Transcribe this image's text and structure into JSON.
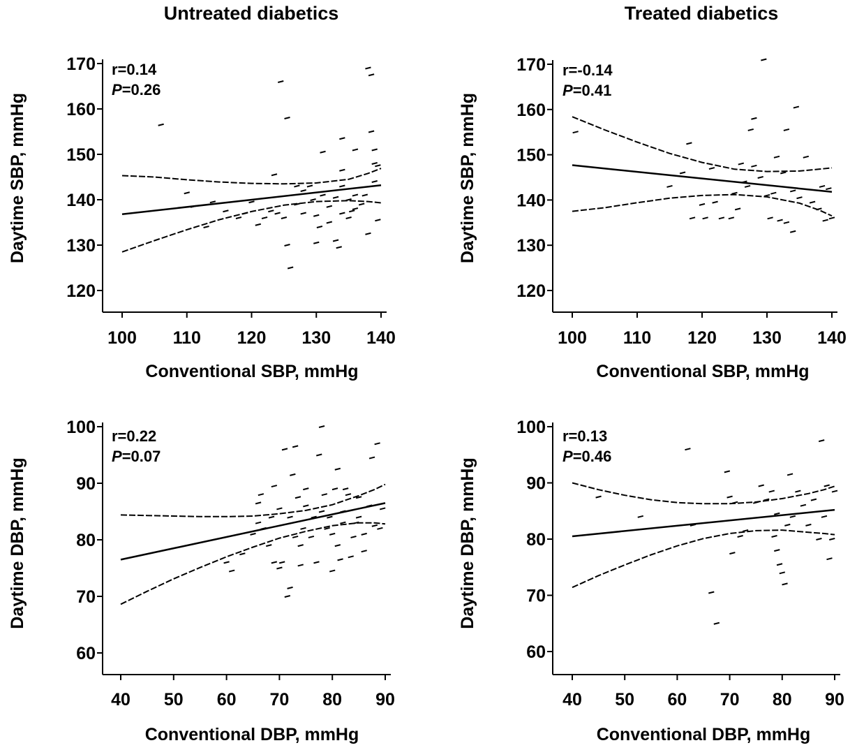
{
  "columns": {
    "left_title": "Untreated diabetics",
    "right_title": "Treated diabetics"
  },
  "chart_data": [
    {
      "type": "scatter",
      "panel": "untreated-sbp",
      "xlabel": "Conventional SBP, mmHg",
      "ylabel": "Daytime SBP, mmHg",
      "xlim": [
        100,
        140
      ],
      "ylim": [
        120,
        170
      ],
      "xticks": [
        100,
        110,
        120,
        130,
        140
      ],
      "yticks": [
        120,
        130,
        140,
        150,
        160,
        170
      ],
      "annotation": {
        "r": "r=0.14",
        "p_label": "P",
        "p_value": "=0.26"
      },
      "points": [
        [
          106,
          156.5
        ],
        [
          110,
          141.5
        ],
        [
          111,
          138.5
        ],
        [
          113,
          134
        ],
        [
          114,
          139.5
        ],
        [
          116,
          137.5
        ],
        [
          118,
          136
        ],
        [
          119,
          137
        ],
        [
          120,
          139.5
        ],
        [
          121,
          134.5
        ],
        [
          122,
          136
        ],
        [
          123,
          137.5
        ],
        [
          123.5,
          145.5
        ],
        [
          124,
          137
        ],
        [
          124.5,
          166
        ],
        [
          125,
          136
        ],
        [
          125.5,
          158
        ],
        [
          125.5,
          130
        ],
        [
          126,
          125
        ],
        [
          127,
          139
        ],
        [
          127,
          143
        ],
        [
          128,
          142
        ],
        [
          128,
          137
        ],
        [
          129,
          143
        ],
        [
          129.5,
          140
        ],
        [
          130,
          130.5
        ],
        [
          130,
          136.5
        ],
        [
          130.5,
          134
        ],
        [
          131,
          141
        ],
        [
          131,
          150.5
        ],
        [
          132,
          135
        ],
        [
          132,
          138.5
        ],
        [
          133,
          131
        ],
        [
          133,
          140.5
        ],
        [
          133.5,
          129.5
        ],
        [
          134,
          137
        ],
        [
          134,
          143
        ],
        [
          134,
          146.5
        ],
        [
          134,
          153.5
        ],
        [
          135,
          136
        ],
        [
          135,
          140
        ],
        [
          135.5,
          137.5
        ],
        [
          136,
          138
        ],
        [
          136,
          141
        ],
        [
          136,
          151
        ],
        [
          137,
          139
        ],
        [
          137.5,
          141
        ],
        [
          138,
          132.5
        ],
        [
          138,
          169
        ],
        [
          138.5,
          155
        ],
        [
          138.5,
          167.5
        ],
        [
          139,
          148
        ],
        [
          139,
          144
        ],
        [
          139,
          151
        ],
        [
          139.5,
          135.5
        ],
        [
          139.5,
          147.5
        ]
      ],
      "fit": {
        "x": [
          100,
          140
        ],
        "y": [
          136.8,
          143.2
        ]
      },
      "ci_upper": {
        "x": [
          100,
          105,
          110,
          115,
          120,
          125,
          130,
          135,
          138,
          140
        ],
        "y": [
          145.3,
          145,
          144.4,
          143.9,
          143.6,
          143.5,
          143.7,
          144.5,
          145.8,
          146.9
        ]
      },
      "ci_lower": {
        "x": [
          100,
          105,
          110,
          115,
          120,
          125,
          130,
          135,
          138,
          140
        ],
        "y": [
          128.5,
          131,
          133.4,
          135.6,
          137.4,
          138.8,
          139.6,
          139.8,
          139.6,
          139.3
        ]
      }
    },
    {
      "type": "scatter",
      "panel": "treated-sbp",
      "xlabel": "Conventional SBP, mmHg",
      "ylabel": "Daytime SBP, mmHg",
      "xlim": [
        100,
        140
      ],
      "ylim": [
        120,
        170
      ],
      "xticks": [
        100,
        110,
        120,
        130,
        140
      ],
      "yticks": [
        120,
        130,
        140,
        150,
        160,
        170
      ],
      "annotation": {
        "r": "r=-0.14",
        "p_label": "P",
        "p_value": "=0.41"
      },
      "points": [
        [
          100.5,
          155
        ],
        [
          115,
          143
        ],
        [
          117,
          146
        ],
        [
          118,
          152.5
        ],
        [
          118.5,
          136
        ],
        [
          120,
          139
        ],
        [
          120.5,
          136
        ],
        [
          121.5,
          147
        ],
        [
          122,
          139.5
        ],
        [
          123,
          136
        ],
        [
          124.5,
          136
        ],
        [
          125,
          141.5
        ],
        [
          125.5,
          138
        ],
        [
          126,
          148
        ],
        [
          126.5,
          144
        ],
        [
          127,
          143
        ],
        [
          127.5,
          155.5
        ],
        [
          128,
          158
        ],
        [
          128,
          147.5
        ],
        [
          129,
          145
        ],
        [
          129.5,
          171
        ],
        [
          130,
          141
        ],
        [
          130.5,
          136
        ],
        [
          131,
          141.5
        ],
        [
          131.5,
          149.5
        ],
        [
          132,
          135.5
        ],
        [
          132.5,
          146
        ],
        [
          133,
          155.5
        ],
        [
          133,
          135
        ],
        [
          134,
          142
        ],
        [
          134,
          133
        ],
        [
          134.5,
          160.5
        ],
        [
          135,
          140.5
        ],
        [
          136,
          149.5
        ],
        [
          137,
          139.5
        ],
        [
          138,
          138
        ],
        [
          138.5,
          143
        ],
        [
          139,
          135.5
        ],
        [
          139.5,
          142.5
        ],
        [
          140,
          136
        ]
      ],
      "fit": {
        "x": [
          100,
          140
        ],
        "y": [
          147.7,
          141.8
        ]
      },
      "ci_upper": {
        "x": [
          100,
          105,
          110,
          115,
          120,
          125,
          130,
          135,
          138,
          140
        ],
        "y": [
          158.4,
          155.5,
          152.8,
          150.3,
          148.3,
          146.8,
          146.3,
          146.4,
          146.8,
          147.1
        ]
      },
      "ci_lower": {
        "x": [
          100,
          105,
          110,
          115,
          120,
          125,
          130,
          135,
          138,
          140
        ],
        "y": [
          137.5,
          138.3,
          139.4,
          140.4,
          141,
          141.2,
          140.7,
          139.3,
          137.8,
          136.5
        ]
      }
    },
    {
      "type": "scatter",
      "panel": "untreated-dbp",
      "xlabel": "Conventional DBP, mmHg",
      "ylabel": "Daytime DBP, mmHg",
      "xlim": [
        40,
        90
      ],
      "ylim": [
        60,
        100
      ],
      "xticks": [
        40,
        50,
        60,
        70,
        80,
        90
      ],
      "yticks": [
        60,
        70,
        80,
        90,
        100
      ],
      "annotation": {
        "r": "r=0.22",
        "p_label": "P",
        "p_value": "=0.07"
      },
      "points": [
        [
          60,
          76
        ],
        [
          61,
          74.5
        ],
        [
          63,
          77.5
        ],
        [
          65,
          81
        ],
        [
          66,
          83
        ],
        [
          66,
          86.5
        ],
        [
          66.5,
          88
        ],
        [
          67,
          82
        ],
        [
          68,
          79
        ],
        [
          68.5,
          84
        ],
        [
          69,
          76
        ],
        [
          69,
          89.5
        ],
        [
          70,
          75
        ],
        [
          70,
          85.5
        ],
        [
          70.5,
          76
        ],
        [
          71,
          96
        ],
        [
          71.5,
          70
        ],
        [
          72,
          71.5
        ],
        [
          72,
          84
        ],
        [
          72.5,
          91.5
        ],
        [
          73,
          80.5
        ],
        [
          73,
          96.5
        ],
        [
          73.5,
          87.5
        ],
        [
          74,
          75.5
        ],
        [
          74,
          79
        ],
        [
          74.5,
          82
        ],
        [
          75,
          86
        ],
        [
          75,
          89
        ],
        [
          76,
          80.5
        ],
        [
          76.5,
          84
        ],
        [
          77,
          76
        ],
        [
          77.5,
          95
        ],
        [
          78,
          100
        ],
        [
          78,
          85
        ],
        [
          78.5,
          88
        ],
        [
          79,
          82
        ],
        [
          79.5,
          84
        ],
        [
          80,
          74.5
        ],
        [
          80,
          81
        ],
        [
          80.5,
          89
        ],
        [
          81,
          79
        ],
        [
          81,
          92.5
        ],
        [
          81.5,
          76.5
        ],
        [
          82,
          85
        ],
        [
          82,
          83
        ],
        [
          82.5,
          89
        ],
        [
          83,
          88
        ],
        [
          83.5,
          77
        ],
        [
          84,
          80.5
        ],
        [
          84.5,
          83
        ],
        [
          85,
          84
        ],
        [
          85,
          87.5
        ],
        [
          86,
          81
        ],
        [
          86,
          78
        ],
        [
          87,
          86
        ],
        [
          87.5,
          94.5
        ],
        [
          88,
          82.5
        ],
        [
          88.5,
          97
        ],
        [
          89,
          82
        ],
        [
          89.5,
          85.5
        ]
      ],
      "fit": {
        "x": [
          40,
          90
        ],
        "y": [
          76.5,
          86.5
        ]
      },
      "ci_upper": {
        "x": [
          40,
          45,
          50,
          55,
          60,
          65,
          70,
          75,
          80,
          85,
          88,
          90
        ],
        "y": [
          84.4,
          84.3,
          84.2,
          84.1,
          84.1,
          84.2,
          84.6,
          85.2,
          86.2,
          87.8,
          88.9,
          89.8
        ]
      },
      "ci_lower": {
        "x": [
          40,
          45,
          50,
          55,
          60,
          65,
          70,
          75,
          80,
          85,
          88,
          90
        ],
        "y": [
          68.6,
          70.9,
          73.1,
          75.1,
          77,
          78.7,
          80.3,
          81.5,
          82.5,
          83,
          83,
          82.8
        ]
      }
    },
    {
      "type": "scatter",
      "panel": "treated-dbp",
      "xlabel": "Conventional DBP, mmHg",
      "ylabel": "Daytime DBP, mmHg",
      "xlim": [
        40,
        90
      ],
      "ylim": [
        60,
        100
      ],
      "xticks": [
        40,
        50,
        60,
        70,
        80,
        90
      ],
      "yticks": [
        60,
        70,
        80,
        90,
        100
      ],
      "annotation": {
        "r": "r=0.13",
        "p_label": "P",
        "p_value": "=0.46"
      },
      "points": [
        [
          45,
          87.5
        ],
        [
          53,
          84
        ],
        [
          62,
          96
        ],
        [
          63,
          82.5
        ],
        [
          66.5,
          70.5
        ],
        [
          67.5,
          65
        ],
        [
          69.5,
          92
        ],
        [
          70,
          87.5
        ],
        [
          70.5,
          77.5
        ],
        [
          71,
          86.5
        ],
        [
          72,
          80.5
        ],
        [
          73,
          81.5
        ],
        [
          75,
          86.5
        ],
        [
          76,
          89.5
        ],
        [
          77,
          87
        ],
        [
          78,
          88.5
        ],
        [
          78.5,
          80.5
        ],
        [
          79,
          78
        ],
        [
          79,
          84.5
        ],
        [
          79.5,
          75.5
        ],
        [
          80,
          74
        ],
        [
          80.5,
          72
        ],
        [
          81,
          82.5
        ],
        [
          81.5,
          91.5
        ],
        [
          82,
          84
        ],
        [
          83,
          88.5
        ],
        [
          84,
          86
        ],
        [
          85,
          82.5
        ],
        [
          86,
          87
        ],
        [
          87,
          80
        ],
        [
          87.5,
          97.5
        ],
        [
          88,
          84
        ],
        [
          88.5,
          89.5
        ],
        [
          89,
          76.5
        ],
        [
          89.5,
          80
        ],
        [
          90,
          88.5
        ]
      ],
      "fit": {
        "x": [
          40,
          90
        ],
        "y": [
          80.5,
          85.2
        ]
      },
      "ci_upper": {
        "x": [
          40,
          45,
          50,
          55,
          60,
          65,
          70,
          75,
          80,
          85,
          88,
          90
        ],
        "y": [
          90,
          88.8,
          87.8,
          87,
          86.5,
          86.3,
          86.3,
          86.6,
          87.2,
          88.1,
          88.8,
          89.4
        ]
      },
      "ci_lower": {
        "x": [
          40,
          45,
          50,
          55,
          60,
          65,
          70,
          75,
          80,
          85,
          88,
          90
        ],
        "y": [
          71.4,
          73.5,
          75.4,
          77.2,
          78.8,
          80.1,
          81,
          81.5,
          81.6,
          81.2,
          81,
          80.8
        ]
      }
    }
  ]
}
